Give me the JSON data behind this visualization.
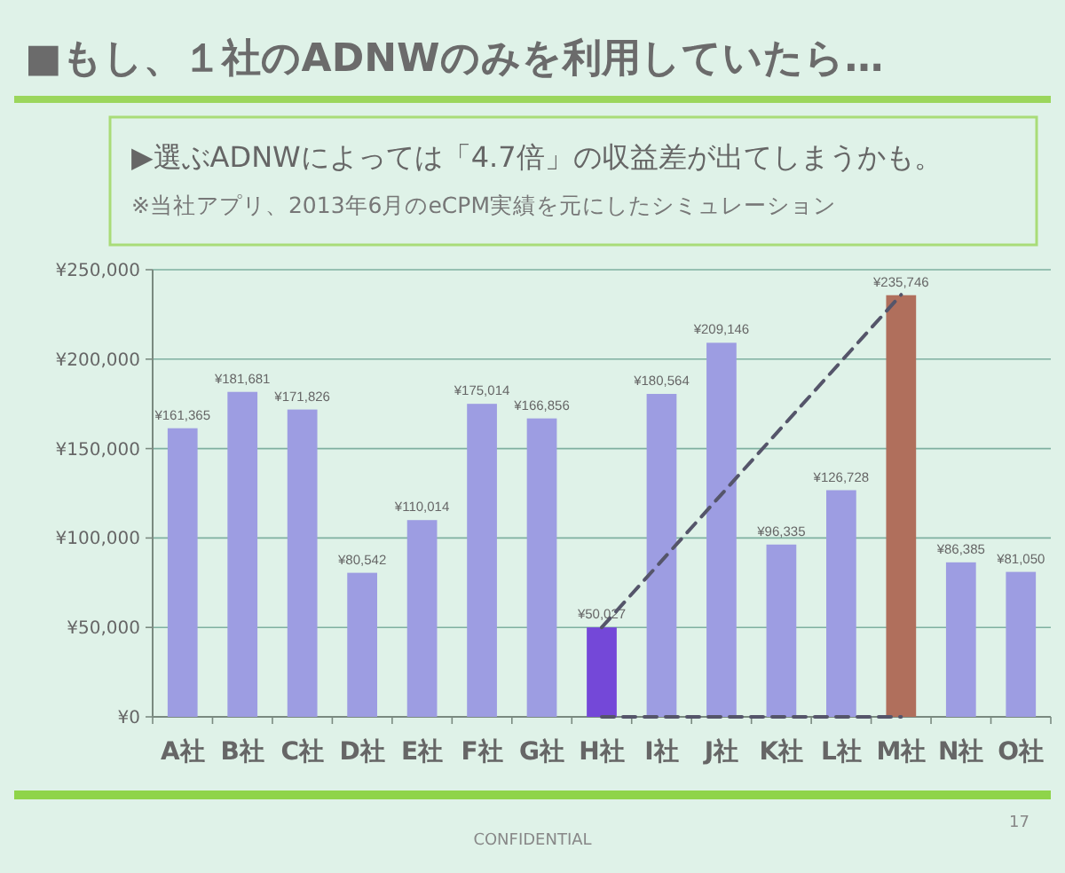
{
  "chart_data": {
    "type": "bar",
    "title": "■もし、１社のADNWのみを利用していたら…",
    "subtitle": "▶選ぶADNWによっては「4.7倍」の収益差が出てしまうかも。",
    "annotations": [
      "※当社アプリ、2013年6月のeCPM実績を元にしたシミュレーション",
      "CONFIDENTIAL",
      "17"
    ],
    "categories": [
      "A社",
      "B社",
      "C社",
      "D社",
      "E社",
      "F社",
      "G社",
      "H社",
      "I社",
      "J社",
      "K社",
      "L社",
      "M社",
      "N社",
      "O社"
    ],
    "series": [
      {
        "colors": [
          "#9d9de2",
          "#9d9de2",
          "#9d9de2",
          "#9d9de2",
          "#9d9de2",
          "#9d9de2",
          "#9d9de2",
          "#7448d8",
          "#9d9de2",
          "#9d9de2",
          "#9d9de2",
          "#9d9de2",
          "#b06f5c",
          "#9d9de2",
          "#9d9de2"
        ],
        "values": [
          161365,
          181681,
          171826,
          80542,
          110014,
          175014,
          166856,
          50027,
          180564,
          209146,
          96335,
          126728,
          235746,
          86385,
          81050
        ],
        "value_labels": [
          "¥161,365",
          "¥181,681",
          "¥171,826",
          "¥80,542",
          "¥110,014",
          "¥175,014",
          "¥166,856",
          "¥50,027",
          "¥180,564",
          "¥209,146",
          "¥96,335",
          "¥126,728",
          "¥235,746",
          "¥86,385",
          "¥81,050"
        ]
      },
      {
        "type": "line",
        "x": [
          "H社",
          "M社"
        ],
        "values": [
          50000,
          236000
        ],
        "color": "#55556a",
        "line_style": "dashed"
      },
      {
        "type": "line",
        "x": [
          "H社",
          "M社"
        ],
        "values": [
          0,
          0
        ],
        "color": "#55556a",
        "line_style": "dashed"
      }
    ],
    "ylim": [
      0,
      250000
    ],
    "yticks": [
      {
        "value": 0,
        "label": "¥0"
      },
      {
        "value": 50000,
        "label": "¥50,000"
      },
      {
        "value": 100000,
        "label": "¥100,000"
      },
      {
        "value": 150000,
        "label": "¥150,000"
      },
      {
        "value": 200000,
        "label": "¥200,000"
      },
      {
        "value": 250000,
        "label": "¥250,000"
      }
    ],
    "grid": "y"
  }
}
